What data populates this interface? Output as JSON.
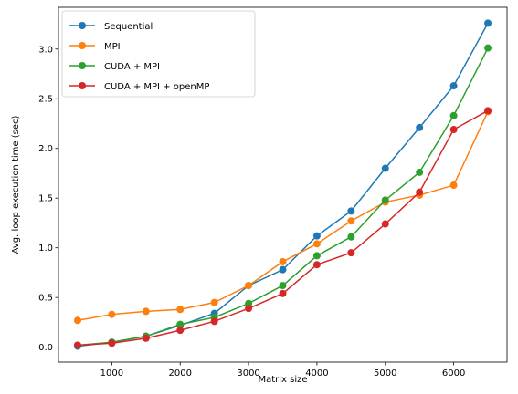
{
  "chart_data": {
    "type": "line",
    "xlabel": "Matrix size",
    "ylabel": "Avg. loop execution time (sec)",
    "xlim": [
      220,
      6780
    ],
    "ylim": [
      -0.15,
      3.42
    ],
    "xticks": [
      1000,
      2000,
      3000,
      4000,
      5000,
      6000
    ],
    "xtick_labels": [
      "1000",
      "2000",
      "3000",
      "4000",
      "5000",
      "6000"
    ],
    "yticks": [
      0.0,
      0.5,
      1.0,
      1.5,
      2.0,
      2.5,
      3.0
    ],
    "ytick_labels": [
      "0.0",
      "0.5",
      "1.0",
      "1.5",
      "2.0",
      "2.5",
      "3.0"
    ],
    "grid": false,
    "legend_position": "top-left",
    "x": [
      500,
      1000,
      1500,
      2000,
      2500,
      3000,
      3500,
      4000,
      4500,
      5000,
      5500,
      6000,
      6500
    ],
    "series": [
      {
        "name": "Sequential",
        "color": "#1f77b4",
        "values": [
          0.01,
          0.05,
          0.11,
          0.22,
          0.34,
          0.62,
          0.78,
          1.12,
          1.37,
          1.8,
          2.21,
          2.63,
          3.26
        ]
      },
      {
        "name": "MPI",
        "color": "#ff7f0e",
        "values": [
          0.27,
          0.33,
          0.36,
          0.38,
          0.45,
          0.62,
          0.86,
          1.04,
          1.27,
          1.46,
          1.53,
          1.63,
          2.37
        ]
      },
      {
        "name": "CUDA + MPI",
        "color": "#2ca02c",
        "values": [
          0.02,
          0.05,
          0.11,
          0.23,
          0.3,
          0.44,
          0.62,
          0.92,
          1.11,
          1.48,
          1.76,
          2.33,
          3.01
        ]
      },
      {
        "name": "CUDA + MPI + openMP",
        "color": "#d62728",
        "values": [
          0.02,
          0.04,
          0.09,
          0.17,
          0.26,
          0.39,
          0.54,
          0.83,
          0.95,
          1.24,
          1.56,
          2.19,
          2.38
        ]
      }
    ]
  }
}
